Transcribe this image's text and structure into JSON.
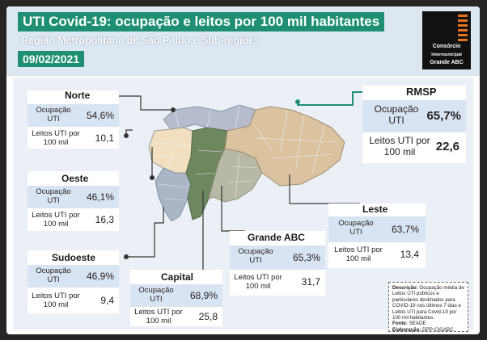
{
  "header": {
    "title": "UTI Covid-19: ocupação e leitos por 100 mil habitantes",
    "subtitle": "Região Metropolitana de São Paulo e Sub-regiões",
    "date": "09/02/2021"
  },
  "logo": {
    "line1": "Consórcio",
    "line2": "Intermunicipal",
    "line3": "Grande ABC"
  },
  "labels": {
    "ocupacao": "Ocupação UTI",
    "leitos": "Leitos UTI por 100 mil"
  },
  "regions": {
    "norte": {
      "name": "Norte",
      "ocupacao": "54,6%",
      "leitos": "10,1"
    },
    "oeste": {
      "name": "Oeste",
      "ocupacao": "46,1%",
      "leitos": "16,3"
    },
    "sudoeste": {
      "name": "Sudoeste",
      "ocupacao": "46,9%",
      "leitos": "9,4"
    },
    "capital": {
      "name": "Capital",
      "ocupacao": "68,9%",
      "leitos": "25,8"
    },
    "abc": {
      "name": "Grande ABC",
      "ocupacao": "65,3%",
      "leitos": "31,7"
    },
    "leste": {
      "name": "Leste",
      "ocupacao": "63,7%",
      "leitos": "13,4"
    },
    "rmsp": {
      "name": "RMSP",
      "ocupacao": "65,7%",
      "leitos": "22,6"
    }
  },
  "note": {
    "descricao_label": "Descrição:",
    "descricao": "Ocupação média de Leitos UTI públicos e particulares destinados para COVID-19 nos últimos 7 dias e Leitos UTI para Covid-19 por 100 mil habitantes.",
    "fonte_label": "Fonte:",
    "fonte": "SEADE",
    "elaboracao_label": "Elaboração:",
    "elaboracao": "DPP-CIGABC"
  },
  "map": {
    "colors": {
      "norte": "#b6bccb",
      "oeste": "#f1dfbf",
      "sudoeste": "#aab5c6",
      "capital": "#6f875f",
      "abc": "#b7b9a6",
      "leste": "#dcc3a0",
      "rmsp_connector": "#1e8f72"
    }
  }
}
